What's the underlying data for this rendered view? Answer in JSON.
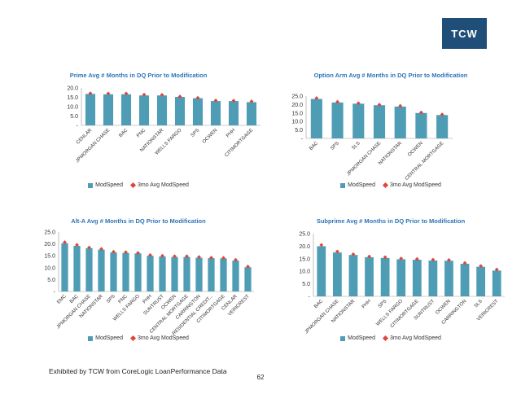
{
  "brand": {
    "logo_text": "TCW"
  },
  "footer": {
    "note": "Exhibited by TCW from CoreLogic LoanPerformance Data",
    "page": "62"
  },
  "colors": {
    "bar": "#4f9db5",
    "marker": "#e0453a",
    "title": "#2e75b6"
  },
  "legend": {
    "bar_label": "ModSpeed",
    "marker_label": "3mo Avg ModSpeed"
  },
  "chart_data": [
    {
      "type": "bar",
      "title": "Prime Avg # Months in DQ Prior to Modification",
      "categories": [
        "CENLAR",
        "JPMORGAN CHASE",
        "BAC",
        "PNC",
        "NATIONSTAR",
        "WELLS FARGO",
        "SPS",
        "OCWEN",
        "PHH",
        "CITIMORTGAGE"
      ],
      "series": [
        {
          "name": "ModSpeed",
          "values": [
            16.8,
            16.6,
            16.6,
            16.0,
            16.0,
            15.2,
            14.5,
            13.0,
            13.0,
            12.4
          ]
        },
        {
          "name": "3mo Avg ModSpeed",
          "values": [
            17.1,
            17.0,
            17.0,
            16.4,
            16.3,
            15.4,
            14.7,
            13.3,
            13.2,
            12.8
          ]
        }
      ],
      "ylim": [
        0,
        20
      ],
      "yticks": [
        "-",
        "5.0",
        "10.0",
        "15.0",
        "20.0"
      ],
      "legend": "bottom"
    },
    {
      "type": "bar",
      "title": "Option Arm Avg # Months in DQ Prior to Modification",
      "categories": [
        "BAC",
        "SPS",
        "SLS",
        "JPMORGAN CHASE",
        "NATIONSTAR",
        "OCWEN",
        "CENTRAL MORTGAGE"
      ],
      "series": [
        {
          "name": "ModSpeed",
          "values": [
            23.3,
            21.2,
            20.5,
            19.6,
            18.8,
            15.0,
            13.8
          ]
        },
        {
          "name": "3mo Avg ModSpeed",
          "values": [
            23.8,
            21.6,
            20.8,
            19.9,
            19.2,
            15.3,
            14.1
          ]
        }
      ],
      "ylim": [
        0,
        25
      ],
      "yticks": [
        "-",
        "5.0",
        "10.0",
        "15.0",
        "20.0",
        "25.0"
      ],
      "legend": "bottom"
    },
    {
      "type": "bar",
      "title": "Alt-A Avg # Months in DQ Prior to Modification",
      "categories": [
        "EMC",
        "BAC",
        "JPMORGAN CHASE",
        "NATIONSTAR",
        "SPS",
        "PNC",
        "WELLS FARGO",
        "PHH",
        "SUNTRUST",
        "OCWEN",
        "CENTRAL MORTGAGE",
        "CARRINGTON",
        "RESIDENTIAL CREDIT...",
        "CITIMORTGAGE",
        "CENLAR",
        "VERICREST"
      ],
      "series": [
        {
          "name": "ModSpeed",
          "values": [
            20.3,
            19.2,
            18.2,
            17.6,
            16.4,
            16.2,
            16.0,
            15.0,
            14.7,
            14.5,
            14.5,
            14.2,
            14.0,
            13.9,
            13.0,
            10.2
          ]
        },
        {
          "name": "3mo Avg ModSpeed",
          "values": [
            20.7,
            19.6,
            18.5,
            17.9,
            16.7,
            16.5,
            16.2,
            15.3,
            15.0,
            14.8,
            14.8,
            14.5,
            14.2,
            14.1,
            13.3,
            10.5
          ]
        }
      ],
      "ylim": [
        0,
        25
      ],
      "yticks": [
        "-",
        "5.0",
        "10.0",
        "15.0",
        "20.0",
        "25.0"
      ],
      "legend": "bottom"
    },
    {
      "type": "bar",
      "title": "Subprime Avg # Months in DQ Prior to Modification",
      "categories": [
        "BAC",
        "JPMORGAN CHASE",
        "NATIONSTAR",
        "PHH",
        "SPS",
        "WELLS FARGO",
        "CITIMORTGAGE",
        "SUNTRUST",
        "OCWEN",
        "CARRINGTON",
        "SLS",
        "VERICREST"
      ],
      "series": [
        {
          "name": "ModSpeed",
          "values": [
            20.0,
            17.5,
            16.5,
            15.6,
            15.3,
            14.8,
            14.6,
            14.3,
            14.2,
            13.0,
            11.8,
            10.3
          ]
        },
        {
          "name": "3mo Avg ModSpeed",
          "values": [
            20.5,
            17.9,
            16.8,
            15.9,
            15.6,
            15.1,
            14.9,
            14.6,
            14.5,
            13.3,
            12.1,
            10.7
          ]
        }
      ],
      "ylim": [
        0,
        25
      ],
      "yticks": [
        "-",
        "5.0",
        "10.0",
        "15.0",
        "20.0",
        "25.0"
      ],
      "legend": "bottom"
    }
  ]
}
